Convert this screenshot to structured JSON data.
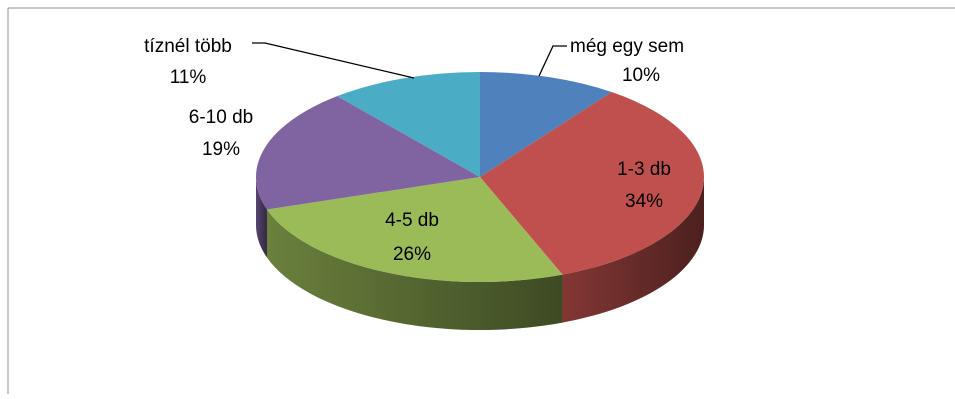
{
  "chart_data": {
    "type": "pie",
    "three_d": true,
    "slices": [
      {
        "name": "még egy sem",
        "label": "még egy sem",
        "percent_label": "10%",
        "value": 10,
        "color": "#4F81BD"
      },
      {
        "name": "1-3 db",
        "label": "1-3 db",
        "percent_label": "34%",
        "value": 34,
        "color": "#C0504D"
      },
      {
        "name": "4-5 db",
        "label": "4-5 db",
        "percent_label": "26%",
        "value": 26,
        "color": "#9BBB59"
      },
      {
        "name": "6-10 db",
        "label": "6-10 db",
        "percent_label": "19%",
        "value": 19,
        "color": "#8064A2"
      },
      {
        "name": "tíznél több",
        "label": "tíznél több",
        "percent_label": "11%",
        "value": 11,
        "color": "#4BACC6"
      }
    ]
  }
}
